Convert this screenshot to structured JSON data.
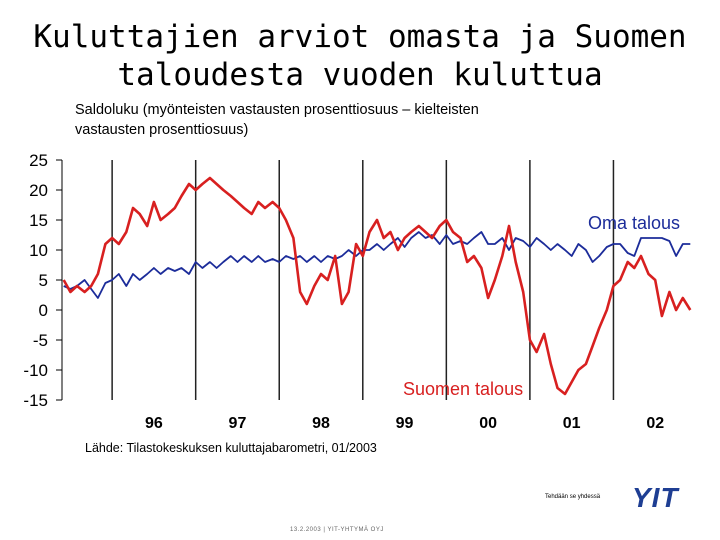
{
  "title": "Kuluttajien arviot omasta ja Suomen taloudesta vuoden kuluttua",
  "subtitle": "Saldoluku (myönteisten vastausten prosenttiosuus – kielteisten vastausten prosenttiosuus)",
  "source": "Lähde: Tilastokeskuksen kuluttajabarometri, 01/2003",
  "tagline": "Tehdään se yhdessä",
  "logo_text": "YIT",
  "footer": "13.2.2003  |  YIT-YHTYMÄ OYJ",
  "colors": {
    "oma": "#1c2c9a",
    "suomi": "#d82020",
    "grid": "#222222"
  },
  "chart_data": {
    "type": "line",
    "title": "",
    "xlabel": "",
    "ylabel": "",
    "ylim": [
      -15,
      25
    ],
    "yticks": [
      "25",
      "20",
      "15",
      "10",
      "5",
      "0",
      "-5",
      "-10",
      "-15"
    ],
    "xticks": [
      "96",
      "97",
      "98",
      "99",
      "00",
      "01",
      "02"
    ],
    "x_start": 1995.4,
    "x_end": 2003.0,
    "grid": "vertical lines at year boundaries",
    "series": [
      {
        "name": "Oma talous",
        "x": [
          1995.42,
          1995.5,
          1995.58,
          1995.67,
          1995.75,
          1995.83,
          1995.92,
          1996.0,
          1996.08,
          1996.17,
          1996.25,
          1996.33,
          1996.42,
          1996.5,
          1996.58,
          1996.67,
          1996.75,
          1996.83,
          1996.92,
          1997.0,
          1997.08,
          1997.17,
          1997.25,
          1997.33,
          1997.42,
          1997.5,
          1997.58,
          1997.67,
          1997.75,
          1997.83,
          1997.92,
          1998.0,
          1998.08,
          1998.17,
          1998.25,
          1998.33,
          1998.42,
          1998.5,
          1998.58,
          1998.67,
          1998.75,
          1998.83,
          1998.92,
          1999.0,
          1999.08,
          1999.17,
          1999.25,
          1999.33,
          1999.42,
          1999.5,
          1999.58,
          1999.67,
          1999.75,
          1999.83,
          1999.92,
          2000.0,
          2000.08,
          2000.17,
          2000.25,
          2000.33,
          2000.42,
          2000.5,
          2000.58,
          2000.67,
          2000.75,
          2000.83,
          2000.92,
          2001.0,
          2001.08,
          2001.17,
          2001.25,
          2001.33,
          2001.42,
          2001.5,
          2001.58,
          2001.67,
          2001.75,
          2001.83,
          2001.92,
          2002.0,
          2002.08,
          2002.17,
          2002.25,
          2002.33,
          2002.42,
          2002.5,
          2002.58,
          2002.67,
          2002.75,
          2002.83,
          2002.92
        ],
        "values": [
          4,
          3.5,
          4,
          5,
          3.5,
          2,
          4.5,
          5,
          6,
          4,
          6,
          5,
          6,
          7,
          6,
          7,
          6.5,
          7,
          6,
          8,
          7,
          8,
          7,
          8,
          9,
          8,
          9,
          8,
          9,
          8,
          8.5,
          8,
          9,
          8.5,
          9,
          8,
          9,
          8,
          9,
          8.5,
          9,
          10,
          9,
          10,
          10,
          11,
          10,
          11,
          12,
          10.5,
          12,
          13,
          12,
          12.5,
          11,
          12.5,
          11,
          11.5,
          11,
          12,
          13,
          11,
          11,
          12,
          10,
          12,
          11.5,
          10.5,
          12,
          11,
          10,
          11,
          10,
          9,
          11,
          10,
          8,
          9,
          10.5,
          11,
          11,
          9.5,
          9,
          12,
          12,
          12,
          12,
          11.5,
          9,
          11,
          11
        ]
      },
      {
        "name": "Suomen talous",
        "x": [
          1995.42,
          1995.5,
          1995.58,
          1995.67,
          1995.75,
          1995.83,
          1995.92,
          1996.0,
          1996.08,
          1996.17,
          1996.25,
          1996.33,
          1996.42,
          1996.5,
          1996.58,
          1996.67,
          1996.75,
          1996.83,
          1996.92,
          1997.0,
          1997.08,
          1997.17,
          1997.25,
          1997.33,
          1997.42,
          1997.5,
          1997.58,
          1997.67,
          1997.75,
          1997.83,
          1997.92,
          1998.0,
          1998.08,
          1998.17,
          1998.25,
          1998.33,
          1998.42,
          1998.5,
          1998.58,
          1998.67,
          1998.75,
          1998.83,
          1998.92,
          1999.0,
          1999.08,
          1999.17,
          1999.25,
          1999.33,
          1999.42,
          1999.5,
          1999.58,
          1999.67,
          1999.75,
          1999.83,
          1999.92,
          2000.0,
          2000.08,
          2000.17,
          2000.25,
          2000.33,
          2000.42,
          2000.5,
          2000.58,
          2000.67,
          2000.75,
          2000.83,
          2000.92,
          2001.0,
          2001.08,
          2001.17,
          2001.25,
          2001.33,
          2001.42,
          2001.5,
          2001.58,
          2001.67,
          2001.75,
          2001.83,
          2001.92,
          2002.0,
          2002.08,
          2002.17,
          2002.25,
          2002.33,
          2002.42,
          2002.5,
          2002.58,
          2002.67,
          2002.75,
          2002.83,
          2002.92
        ],
        "values": [
          5,
          3,
          4,
          3,
          4,
          6,
          11,
          12,
          11,
          13,
          17,
          16,
          14,
          18,
          15,
          16,
          17,
          19,
          21,
          20,
          21,
          22,
          21,
          20,
          19,
          18,
          17,
          16,
          18,
          17,
          18,
          17,
          15,
          12,
          3,
          1,
          4,
          6,
          5,
          9,
          1,
          3,
          11,
          9,
          13,
          15,
          12,
          13,
          10,
          12,
          13,
          14,
          13,
          12,
          14,
          15,
          13,
          12,
          8,
          9,
          7,
          2,
          5,
          9,
          14,
          8,
          3,
          -5,
          -7,
          -4,
          -9,
          -13,
          -14,
          -12,
          -10,
          -9,
          -6,
          -3,
          0,
          4,
          5,
          8,
          7,
          9,
          6,
          5,
          -1,
          3,
          0,
          2,
          0
        ]
      }
    ]
  }
}
